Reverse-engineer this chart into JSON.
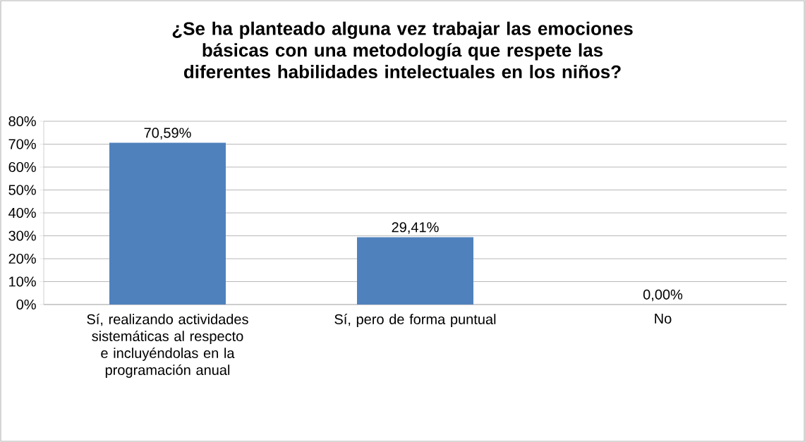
{
  "chart_data": {
    "type": "bar",
    "title": "¿Se ha planteado alguna vez trabajar las emociones básicas con una metodología que respete las diferentes habilidades intelectuales en los niños?",
    "categories": [
      "Sí, realizando actividades sistemáticas al respecto e incluyéndolas en la programación anual",
      "Sí, pero de forma puntual",
      "No"
    ],
    "values": [
      70.59,
      29.41,
      0.0
    ],
    "value_labels": [
      "70,59%",
      "29,41%",
      "0,00%"
    ],
    "color": "#4f81bd",
    "ylim": [
      0,
      80
    ],
    "yticks": [
      {
        "value": 0,
        "label": "0%"
      },
      {
        "value": 10,
        "label": "10%"
      },
      {
        "value": 20,
        "label": "20%"
      },
      {
        "value": 30,
        "label": "30%"
      },
      {
        "value": 40,
        "label": "40%"
      },
      {
        "value": 50,
        "label": "50%"
      },
      {
        "value": 60,
        "label": "60%"
      },
      {
        "value": 70,
        "label": "70%"
      },
      {
        "value": 80,
        "label": "80%"
      }
    ],
    "grid": "y",
    "legend": false
  }
}
